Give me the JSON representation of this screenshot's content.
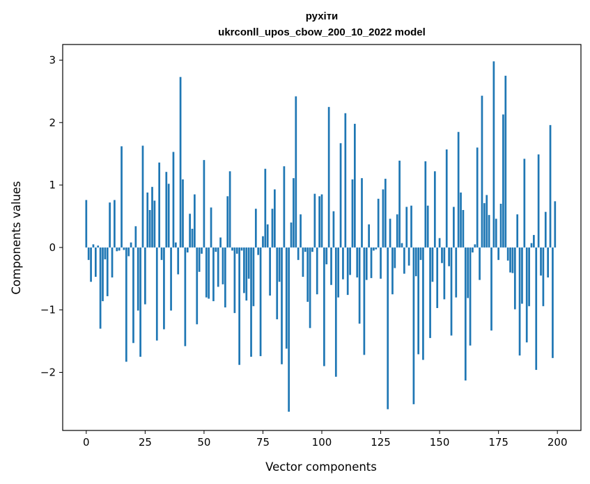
{
  "chart_data": {
    "type": "bar",
    "title": "рухіти",
    "subtitle": "ukrconll_upos_cbow_200_10_2022 model",
    "xlabel": "Vector components",
    "ylabel": "Components values",
    "xlim": [
      -10,
      210
    ],
    "ylim": [
      -2.93,
      3.25
    ],
    "xticks": [
      0,
      25,
      50,
      75,
      100,
      125,
      150,
      175,
      200
    ],
    "yticks": [
      -2,
      -1,
      0,
      1,
      2,
      3
    ],
    "ytick_labels": [
      "−2",
      "−1",
      "0",
      "1",
      "2",
      "3"
    ],
    "bar_color": "#1f77b4",
    "values": [
      0.76,
      -0.2,
      -0.55,
      0.05,
      -0.47,
      0.03,
      -1.3,
      -0.86,
      -0.19,
      -0.78,
      0.72,
      -0.48,
      0.76,
      -0.06,
      -0.05,
      1.62,
      -0.04,
      -1.83,
      -0.14,
      0.08,
      -1.53,
      0.34,
      -1.01,
      -1.75,
      1.63,
      -0.91,
      0.88,
      0.6,
      0.97,
      0.75,
      -1.49,
      1.36,
      -0.2,
      -1.31,
      1.21,
      1.02,
      -1.01,
      1.53,
      0.08,
      -0.43,
      2.73,
      1.09,
      -1.58,
      -0.08,
      0.54,
      0.3,
      0.85,
      -1.23,
      -0.39,
      -0.1,
      1.4,
      -0.8,
      -0.82,
      0.64,
      -0.86,
      -0.07,
      -0.63,
      0.16,
      -0.59,
      -0.96,
      0.82,
      1.22,
      -0.05,
      -1.05,
      -0.1,
      -1.88,
      -0.05,
      -0.73,
      -0.85,
      -0.5,
      -1.75,
      -0.94,
      0.62,
      -0.12,
      -1.74,
      0.18,
      1.26,
      0.37,
      -0.77,
      0.62,
      0.93,
      -1.15,
      -0.55,
      -1.87,
      1.3,
      -1.62,
      -2.63,
      0.4,
      1.11,
      2.42,
      -0.2,
      0.53,
      -0.47,
      -0.07,
      -0.87,
      -1.29,
      -0.07,
      0.86,
      -0.75,
      0.82,
      0.85,
      -1.9,
      -0.27,
      2.25,
      -0.6,
      0.58,
      -2.07,
      -0.8,
      1.67,
      -0.51,
      2.15,
      -0.76,
      -0.44,
      1.09,
      1.98,
      -0.48,
      -1.22,
      1.11,
      -1.72,
      -0.52,
      0.37,
      -0.49,
      -0.05,
      -0.03,
      0.78,
      -0.5,
      0.93,
      1.1,
      -2.59,
      0.46,
      -0.75,
      -0.33,
      0.53,
      1.39,
      0.07,
      -0.42,
      0.65,
      -0.29,
      0.67,
      -2.51,
      -0.46,
      -1.71,
      -0.2,
      -1.8,
      1.38,
      0.67,
      -1.45,
      -0.55,
      1.22,
      -0.97,
      0.15,
      -0.25,
      -0.83,
      1.57,
      -0.3,
      -1.41,
      0.65,
      -0.8,
      1.85,
      0.88,
      0.6,
      -2.13,
      -0.81,
      -1.57,
      -0.08,
      0.05,
      1.6,
      -0.52,
      2.43,
      0.71,
      0.84,
      0.52,
      -1.33,
      2.98,
      0.46,
      -0.2,
      0.7,
      2.13,
      2.75,
      -0.21,
      -0.4,
      -0.41,
      -0.99,
      0.53,
      -1.73,
      -0.9,
      1.42,
      -1.52,
      -0.94,
      0.07,
      0.2,
      -1.96,
      1.49,
      -0.45,
      -0.94,
      0.57,
      -0.48,
      1.96,
      -1.77,
      0.74
    ]
  }
}
